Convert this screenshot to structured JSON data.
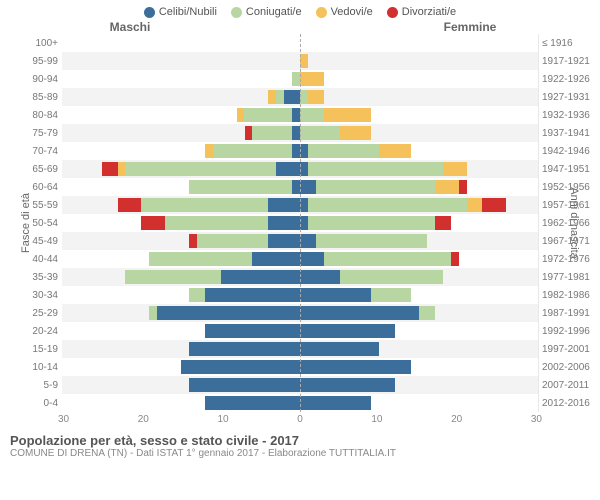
{
  "legend": [
    {
      "label": "Celibi/Nubili",
      "color": "#3b6e9a"
    },
    {
      "label": "Coniugati/e",
      "color": "#b7d6a1"
    },
    {
      "label": "Vedovi/e",
      "color": "#f5c15b"
    },
    {
      "label": "Divorziati/e",
      "color": "#d22f2f"
    }
  ],
  "headers": {
    "left": "Maschi",
    "right": "Femmine"
  },
  "yaxis_left_title": "Fasce di età",
  "yaxis_right_title": "Anni di nascita",
  "xaxis": {
    "max": 30,
    "ticks": [
      30,
      20,
      10,
      0,
      10,
      20,
      30
    ]
  },
  "colors": {
    "celibi": "#3b6e9a",
    "coniugati": "#b7d6a1",
    "vedovi": "#f5c15b",
    "divorziati": "#d22f2f",
    "bg_odd": "#ffffff",
    "bg_even": "#f3f3f3",
    "grid": "#e8e8e8",
    "centerline": "#aaaaaa"
  },
  "rows": [
    {
      "age": "100+",
      "birth": "≤ 1916",
      "m": {
        "cel": 0,
        "con": 0,
        "ved": 0,
        "div": 0
      },
      "f": {
        "cel": 0,
        "con": 0,
        "ved": 0,
        "div": 0
      }
    },
    {
      "age": "95-99",
      "birth": "1917-1921",
      "m": {
        "cel": 0,
        "con": 0,
        "ved": 0,
        "div": 0
      },
      "f": {
        "cel": 0,
        "con": 0,
        "ved": 1,
        "div": 0
      }
    },
    {
      "age": "90-94",
      "birth": "1922-1926",
      "m": {
        "cel": 0,
        "con": 1,
        "ved": 0,
        "div": 0
      },
      "f": {
        "cel": 0,
        "con": 0,
        "ved": 3,
        "div": 0
      }
    },
    {
      "age": "85-89",
      "birth": "1927-1931",
      "m": {
        "cel": 2,
        "con": 1,
        "ved": 1,
        "div": 0
      },
      "f": {
        "cel": 0,
        "con": 1,
        "ved": 2,
        "div": 0
      }
    },
    {
      "age": "80-84",
      "birth": "1932-1936",
      "m": {
        "cel": 1,
        "con": 6,
        "ved": 1,
        "div": 0
      },
      "f": {
        "cel": 0,
        "con": 3,
        "ved": 6,
        "div": 0
      }
    },
    {
      "age": "75-79",
      "birth": "1937-1941",
      "m": {
        "cel": 1,
        "con": 5,
        "ved": 0,
        "div": 1
      },
      "f": {
        "cel": 0,
        "con": 5,
        "ved": 4,
        "div": 0
      }
    },
    {
      "age": "70-74",
      "birth": "1942-1946",
      "m": {
        "cel": 1,
        "con": 10,
        "ved": 1,
        "div": 0
      },
      "f": {
        "cel": 1,
        "con": 9,
        "ved": 4,
        "div": 0
      }
    },
    {
      "age": "65-69",
      "birth": "1947-1951",
      "m": {
        "cel": 3,
        "con": 19,
        "ved": 1,
        "div": 2
      },
      "f": {
        "cel": 1,
        "con": 17,
        "ved": 3,
        "div": 0
      }
    },
    {
      "age": "60-64",
      "birth": "1952-1956",
      "m": {
        "cel": 1,
        "con": 13,
        "ved": 0,
        "div": 0
      },
      "f": {
        "cel": 2,
        "con": 15,
        "ved": 3,
        "div": 1
      }
    },
    {
      "age": "55-59",
      "birth": "1957-1961",
      "m": {
        "cel": 4,
        "con": 16,
        "ved": 0,
        "div": 3
      },
      "f": {
        "cel": 1,
        "con": 20,
        "ved": 2,
        "div": 3
      }
    },
    {
      "age": "50-54",
      "birth": "1962-1966",
      "m": {
        "cel": 4,
        "con": 13,
        "ved": 0,
        "div": 3
      },
      "f": {
        "cel": 1,
        "con": 16,
        "ved": 0,
        "div": 2
      }
    },
    {
      "age": "45-49",
      "birth": "1967-1971",
      "m": {
        "cel": 4,
        "con": 9,
        "ved": 0,
        "div": 1
      },
      "f": {
        "cel": 2,
        "con": 14,
        "ved": 0,
        "div": 0
      }
    },
    {
      "age": "40-44",
      "birth": "1972-1976",
      "m": {
        "cel": 6,
        "con": 13,
        "ved": 0,
        "div": 0
      },
      "f": {
        "cel": 3,
        "con": 16,
        "ved": 0,
        "div": 1
      }
    },
    {
      "age": "35-39",
      "birth": "1977-1981",
      "m": {
        "cel": 10,
        "con": 12,
        "ved": 0,
        "div": 0
      },
      "f": {
        "cel": 5,
        "con": 13,
        "ved": 0,
        "div": 0
      }
    },
    {
      "age": "30-34",
      "birth": "1982-1986",
      "m": {
        "cel": 12,
        "con": 2,
        "ved": 0,
        "div": 0
      },
      "f": {
        "cel": 9,
        "con": 5,
        "ved": 0,
        "div": 0
      }
    },
    {
      "age": "25-29",
      "birth": "1987-1991",
      "m": {
        "cel": 18,
        "con": 1,
        "ved": 0,
        "div": 0
      },
      "f": {
        "cel": 15,
        "con": 2,
        "ved": 0,
        "div": 0
      }
    },
    {
      "age": "20-24",
      "birth": "1992-1996",
      "m": {
        "cel": 12,
        "con": 0,
        "ved": 0,
        "div": 0
      },
      "f": {
        "cel": 12,
        "con": 0,
        "ved": 0,
        "div": 0
      }
    },
    {
      "age": "15-19",
      "birth": "1997-2001",
      "m": {
        "cel": 14,
        "con": 0,
        "ved": 0,
        "div": 0
      },
      "f": {
        "cel": 10,
        "con": 0,
        "ved": 0,
        "div": 0
      }
    },
    {
      "age": "10-14",
      "birth": "2002-2006",
      "m": {
        "cel": 15,
        "con": 0,
        "ved": 0,
        "div": 0
      },
      "f": {
        "cel": 14,
        "con": 0,
        "ved": 0,
        "div": 0
      }
    },
    {
      "age": "5-9",
      "birth": "2007-2011",
      "m": {
        "cel": 14,
        "con": 0,
        "ved": 0,
        "div": 0
      },
      "f": {
        "cel": 12,
        "con": 0,
        "ved": 0,
        "div": 0
      }
    },
    {
      "age": "0-4",
      "birth": "2012-2016",
      "m": {
        "cel": 12,
        "con": 0,
        "ved": 0,
        "div": 0
      },
      "f": {
        "cel": 9,
        "con": 0,
        "ved": 0,
        "div": 0
      }
    }
  ],
  "footer": {
    "title": "Popolazione per età, sesso e stato civile - 2017",
    "subtitle": "COMUNE DI DRENA (TN) - Dati ISTAT 1° gennaio 2017 - Elaborazione TUTTITALIA.IT"
  }
}
